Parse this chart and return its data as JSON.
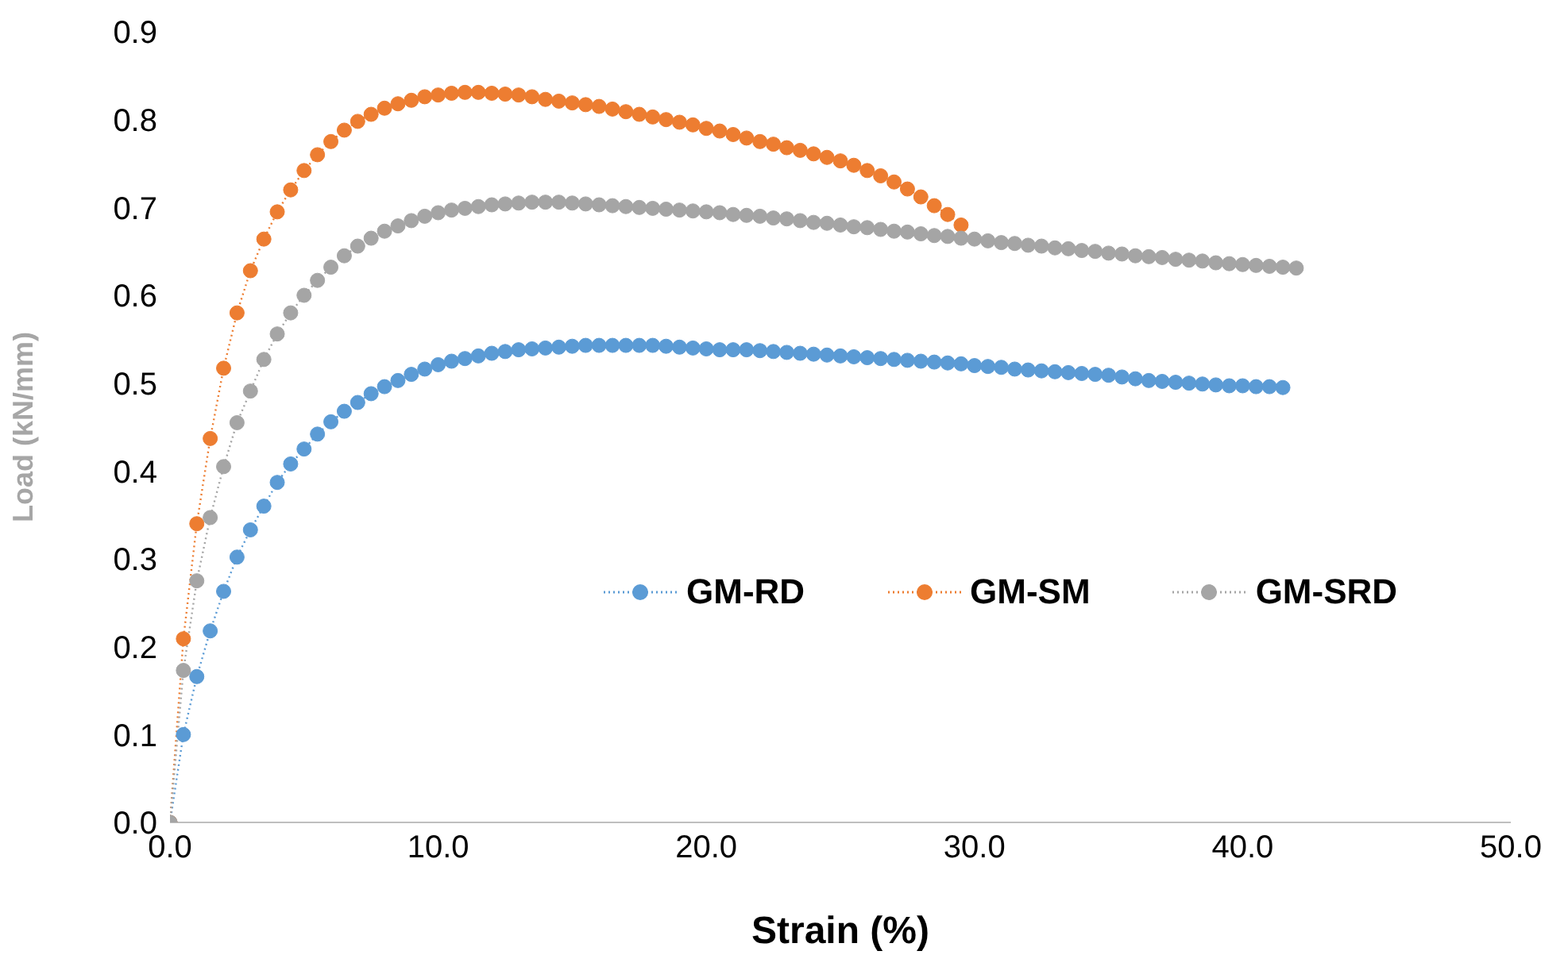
{
  "chart_data": {
    "type": "line",
    "xlabel": "Strain (%)",
    "ylabel": "Load (kN/mm)",
    "xlim": [
      0,
      50
    ],
    "xticks": [
      {
        "value": 0,
        "label": "0.0"
      },
      {
        "value": 10,
        "label": "10.0"
      },
      {
        "value": 20,
        "label": "20.0"
      },
      {
        "value": 30,
        "label": "30.0"
      },
      {
        "value": 40,
        "label": "40.0"
      },
      {
        "value": 50,
        "label": "50.0"
      }
    ],
    "ylim": [
      0,
      0.9
    ],
    "yticks": [
      {
        "value": 0,
        "label": "0.0"
      },
      {
        "value": 0.1,
        "label": "0.1"
      },
      {
        "value": 0.2,
        "label": "0.2"
      },
      {
        "value": 0.3,
        "label": "0.3"
      },
      {
        "value": 0.4,
        "label": "0.4"
      },
      {
        "value": 0.5,
        "label": "0.5"
      },
      {
        "value": 0.6,
        "label": "0.6"
      },
      {
        "value": 0.7,
        "label": "0.7"
      },
      {
        "value": 0.8,
        "label": "0.8"
      },
      {
        "value": 0.9,
        "label": "0.9"
      }
    ],
    "grid": false,
    "legend": "right",
    "marker": "circle",
    "line_style": "dotted",
    "series": [
      {
        "name": "GM-RD",
        "color": "#5b9bd5",
        "x": [
          0,
          0.5,
          1,
          1.5,
          2,
          2.5,
          3,
          3.5,
          4,
          4.5,
          5,
          5.5,
          6,
          6.5,
          7,
          7.5,
          8,
          8.5,
          9,
          9.5,
          10,
          10.5,
          11,
          11.5,
          12,
          12.5,
          13,
          13.5,
          14,
          14.5,
          15,
          15.5,
          16,
          16.5,
          17,
          17.5,
          18,
          18.5,
          19,
          19.5,
          20,
          20.5,
          21,
          21.5,
          22,
          22.5,
          23,
          23.5,
          24,
          24.5,
          25,
          25.5,
          26,
          26.5,
          27,
          27.5,
          28,
          28.5,
          29,
          29.5,
          30,
          30.5,
          31,
          31.5,
          32,
          32.5,
          33,
          33.5,
          34,
          34.5,
          35,
          35.5,
          36,
          36.5,
          37,
          37.5,
          38,
          38.5,
          39,
          39.5,
          40,
          40.5,
          41,
          41.5
        ],
        "values": [
          0,
          0.1,
          0.166,
          0.218,
          0.263,
          0.302,
          0.333,
          0.36,
          0.387,
          0.408,
          0.425,
          0.442,
          0.456,
          0.468,
          0.478,
          0.488,
          0.496,
          0.503,
          0.51,
          0.516,
          0.521,
          0.525,
          0.528,
          0.531,
          0.534,
          0.536,
          0.538,
          0.539,
          0.54,
          0.541,
          0.542,
          0.543,
          0.543,
          0.543,
          0.543,
          0.543,
          0.543,
          0.542,
          0.541,
          0.54,
          0.539,
          0.538,
          0.538,
          0.538,
          0.537,
          0.536,
          0.535,
          0.534,
          0.533,
          0.532,
          0.531,
          0.53,
          0.529,
          0.528,
          0.527,
          0.526,
          0.525,
          0.524,
          0.523,
          0.522,
          0.52,
          0.519,
          0.518,
          0.516,
          0.515,
          0.514,
          0.513,
          0.512,
          0.511,
          0.51,
          0.509,
          0.507,
          0.505,
          0.503,
          0.502,
          0.501,
          0.5,
          0.499,
          0.498,
          0.497,
          0.497,
          0.496,
          0.496,
          0.495
        ]
      },
      {
        "name": "GM-SM",
        "color": "#ed7d31",
        "x": [
          0,
          0.5,
          1,
          1.5,
          2,
          2.5,
          3,
          3.5,
          4,
          4.5,
          5,
          5.5,
          6,
          6.5,
          7,
          7.5,
          8,
          8.5,
          9,
          9.5,
          10,
          10.5,
          11,
          11.5,
          12,
          12.5,
          13,
          13.5,
          14,
          14.5,
          15,
          15.5,
          16,
          16.5,
          17,
          17.5,
          18,
          18.5,
          19,
          19.5,
          20,
          20.5,
          21,
          21.5,
          22,
          22.5,
          23,
          23.5,
          24,
          24.5,
          25,
          25.5,
          26,
          26.5,
          27,
          27.5,
          28,
          28.5,
          29,
          29.5
        ],
        "values": [
          0,
          0.209,
          0.34,
          0.437,
          0.517,
          0.58,
          0.628,
          0.664,
          0.695,
          0.72,
          0.742,
          0.76,
          0.775,
          0.788,
          0.798,
          0.806,
          0.813,
          0.818,
          0.822,
          0.826,
          0.828,
          0.83,
          0.831,
          0.831,
          0.83,
          0.829,
          0.828,
          0.826,
          0.823,
          0.821,
          0.819,
          0.817,
          0.815,
          0.812,
          0.809,
          0.806,
          0.803,
          0.8,
          0.797,
          0.794,
          0.79,
          0.787,
          0.783,
          0.779,
          0.775,
          0.772,
          0.768,
          0.765,
          0.761,
          0.757,
          0.753,
          0.748,
          0.742,
          0.736,
          0.729,
          0.721,
          0.712,
          0.702,
          0.692,
          0.68
        ]
      },
      {
        "name": "GM-SRD",
        "color": "#a5a5a5",
        "x": [
          0,
          0.5,
          1,
          1.5,
          2,
          2.5,
          3,
          3.5,
          4,
          4.5,
          5,
          5.5,
          6,
          6.5,
          7,
          7.5,
          8,
          8.5,
          9,
          9.5,
          10,
          10.5,
          11,
          11.5,
          12,
          12.5,
          13,
          13.5,
          14,
          14.5,
          15,
          15.5,
          16,
          16.5,
          17,
          17.5,
          18,
          18.5,
          19,
          19.5,
          20,
          20.5,
          21,
          21.5,
          22,
          22.5,
          23,
          23.5,
          24,
          24.5,
          25,
          25.5,
          26,
          26.5,
          27,
          27.5,
          28,
          28.5,
          29,
          29.5,
          30,
          30.5,
          31,
          31.5,
          32,
          32.5,
          33,
          33.5,
          34,
          34.5,
          35,
          35.5,
          36,
          36.5,
          37,
          37.5,
          38,
          38.5,
          39,
          39.5,
          40,
          40.5,
          41,
          41.5,
          42
        ],
        "values": [
          0,
          0.173,
          0.275,
          0.347,
          0.405,
          0.455,
          0.491,
          0.527,
          0.556,
          0.58,
          0.6,
          0.617,
          0.632,
          0.645,
          0.656,
          0.665,
          0.673,
          0.679,
          0.685,
          0.69,
          0.694,
          0.697,
          0.699,
          0.701,
          0.703,
          0.704,
          0.705,
          0.706,
          0.706,
          0.706,
          0.705,
          0.704,
          0.703,
          0.702,
          0.701,
          0.7,
          0.699,
          0.698,
          0.697,
          0.696,
          0.695,
          0.694,
          0.692,
          0.691,
          0.69,
          0.688,
          0.687,
          0.685,
          0.683,
          0.682,
          0.68,
          0.678,
          0.677,
          0.675,
          0.673,
          0.672,
          0.67,
          0.668,
          0.667,
          0.665,
          0.664,
          0.662,
          0.66,
          0.659,
          0.657,
          0.656,
          0.654,
          0.653,
          0.651,
          0.65,
          0.648,
          0.647,
          0.645,
          0.644,
          0.643,
          0.641,
          0.64,
          0.639,
          0.637,
          0.636,
          0.635,
          0.634,
          0.633,
          0.632,
          0.631
        ]
      }
    ]
  }
}
